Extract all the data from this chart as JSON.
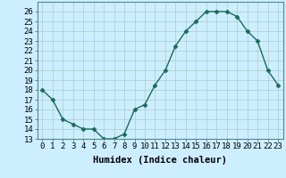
{
  "x": [
    0,
    1,
    2,
    3,
    4,
    5,
    6,
    7,
    8,
    9,
    10,
    11,
    12,
    13,
    14,
    15,
    16,
    17,
    18,
    19,
    20,
    21,
    22,
    23
  ],
  "y": [
    18,
    17,
    15,
    14.5,
    14,
    14,
    13,
    13,
    13.5,
    16,
    16.5,
    18.5,
    20,
    22.5,
    24,
    25,
    26,
    26,
    26,
    25.5,
    24,
    23,
    20,
    18.5
  ],
  "xlabel": "Humidex (Indice chaleur)",
  "ylim": [
    13,
    27
  ],
  "xlim": [
    -0.5,
    23.5
  ],
  "yticks": [
    13,
    14,
    15,
    16,
    17,
    18,
    19,
    20,
    21,
    22,
    23,
    24,
    25,
    26
  ],
  "xticks": [
    0,
    1,
    2,
    3,
    4,
    5,
    6,
    7,
    8,
    9,
    10,
    11,
    12,
    13,
    14,
    15,
    16,
    17,
    18,
    19,
    20,
    21,
    22,
    23
  ],
  "xtick_labels": [
    "0",
    "1",
    "2",
    "3",
    "4",
    "5",
    "6",
    "7",
    "8",
    "9",
    "10",
    "11",
    "12",
    "13",
    "14",
    "15",
    "16",
    "17",
    "18",
    "19",
    "20",
    "21",
    "22",
    "23"
  ],
  "line_color": "#1a6b5a",
  "marker": "D",
  "marker_size": 2.5,
  "line_width": 1.0,
  "bg_color": "#cceeff",
  "grid_color": "#aacccc",
  "tick_fontsize": 6.5,
  "xlabel_fontsize": 7.5
}
